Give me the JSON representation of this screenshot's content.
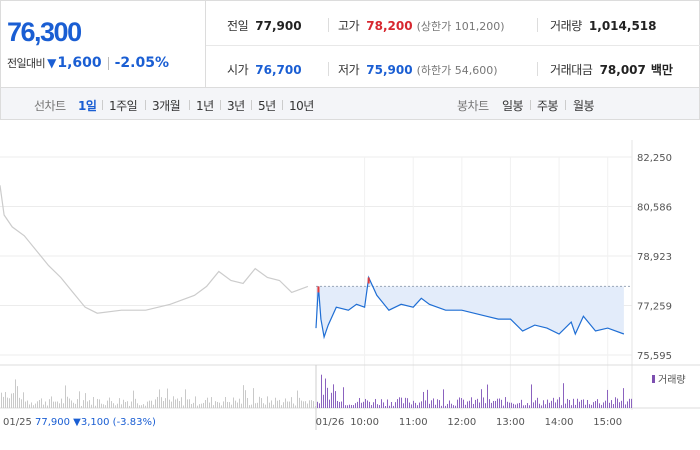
{
  "quote": {
    "price": "76,300",
    "change_label": "전일대비",
    "change_value": "1,600",
    "change_pct": "-2.05%"
  },
  "stats": {
    "prev_close": {
      "label": "전일",
      "value": "77,900"
    },
    "high": {
      "label": "고가",
      "value": "78,200",
      "sub": "(상한가 101,200)"
    },
    "volume": {
      "label": "거래량",
      "value": "1,014,518"
    },
    "open": {
      "label": "시가",
      "value": "76,700"
    },
    "low": {
      "label": "저가",
      "value": "75,900",
      "sub": "(하한가 54,600)"
    },
    "amount": {
      "label": "거래대금",
      "value": "78,007",
      "unit": "백만"
    }
  },
  "tabs": {
    "line_label": "선차트",
    "line": [
      "1일",
      "1주일",
      "3개월",
      "1년",
      "3년",
      "5년",
      "10년"
    ],
    "active": "1일",
    "candle_label": "봉차트",
    "candle": [
      "일봉",
      "주봉",
      "월봉"
    ]
  },
  "chart_data": {
    "type": "line",
    "y_ticks": [
      "82,250",
      "80,586",
      "78,923",
      "77,259",
      "75,595"
    ],
    "y_range": [
      75595,
      82250
    ],
    "volume_legend": "거래량",
    "prev_day_info": {
      "date": "01/25",
      "close": "77,900",
      "change": "3,100",
      "change_pct": "(-3.83%)"
    },
    "x_ticks": [
      "01/26",
      "10:00",
      "11:00",
      "12:00",
      "13:00",
      "14:00",
      "15:00"
    ],
    "series": [
      {
        "x": [
          "01/25 09:00",
          "01/25 09:05",
          "01/25 09:15",
          "01/25 09:30",
          "01/25 09:45",
          "01/25 10:00",
          "01/25 10:15",
          "01/25 10:30",
          "01/25 10:45",
          "01/25 11:00",
          "01/25 11:30",
          "01/25 12:00",
          "01/25 12:30",
          "01/25 13:00",
          "01/25 13:15",
          "01/25 13:30",
          "01/25 13:45",
          "01/25 14:00",
          "01/25 14:15",
          "01/25 14:30",
          "01/25 14:45",
          "01/25 15:00",
          "01/25 15:20"
        ],
        "values": [
          81300,
          80300,
          79900,
          79600,
          79100,
          78600,
          78200,
          77700,
          77200,
          77000,
          77100,
          77100,
          77300,
          77600,
          77900,
          78400,
          78100,
          78000,
          78500,
          78200,
          78100,
          77700,
          77900
        ],
        "color": "#cccccc"
      },
      {
        "x": [
          "09:00",
          "09:03",
          "09:06",
          "09:10",
          "09:15",
          "09:25",
          "09:40",
          "09:50",
          "10:00",
          "10:05",
          "10:15",
          "10:30",
          "10:45",
          "11:00",
          "11:10",
          "11:20",
          "11:40",
          "12:00",
          "12:30",
          "12:45",
          "13:00",
          "13:15",
          "13:30",
          "13:45",
          "14:00",
          "14:15",
          "14:20",
          "14:30",
          "14:45",
          "15:00",
          "15:20"
        ],
        "values": [
          76500,
          77900,
          76800,
          76200,
          76600,
          77200,
          77100,
          77300,
          77200,
          78200,
          77600,
          77100,
          77300,
          77200,
          77500,
          77300,
          77100,
          77100,
          76900,
          76800,
          76800,
          76400,
          76600,
          76500,
          76300,
          76700,
          76300,
          76900,
          76400,
          76500,
          76300
        ],
        "color": "#1f6ed4",
        "fill": "#e3ecfa"
      }
    ],
    "high_markers": [
      "09:03",
      "10:05"
    ]
  }
}
